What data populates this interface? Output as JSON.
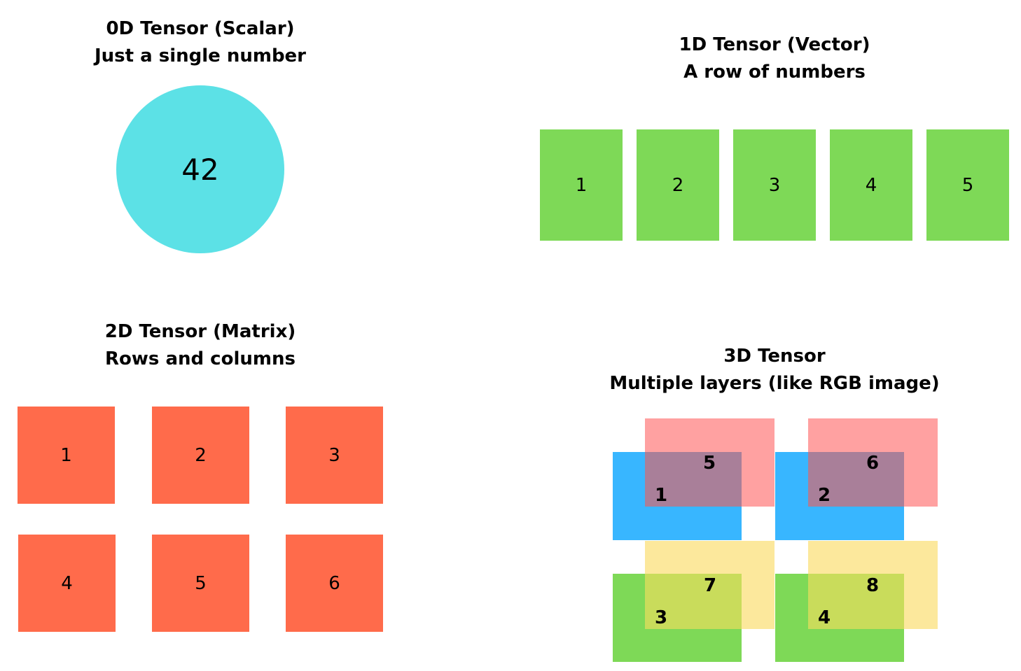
{
  "scalar": {
    "title": "0D Tensor (Scalar)",
    "subtitle": "Just a single number",
    "value": "42"
  },
  "vector": {
    "title": "1D Tensor (Vector)",
    "subtitle": "A row of numbers",
    "values": [
      "1",
      "2",
      "3",
      "4",
      "5"
    ]
  },
  "matrix": {
    "title": "2D Tensor (Matrix)",
    "subtitle": "Rows and columns",
    "values": [
      "1",
      "2",
      "3",
      "4",
      "5",
      "6"
    ]
  },
  "tensor3d": {
    "title": "3D Tensor",
    "subtitle": "Multiple layers (like RGB image)",
    "front": [
      "1",
      "2",
      "3",
      "4"
    ],
    "back": [
      "5",
      "6",
      "7",
      "8"
    ]
  },
  "colors": {
    "scalar": "#5ce1e6",
    "vector": "#7ed957",
    "matrix": "#ff6b4b",
    "layer_pink": "#ff9191",
    "layer_blue": "#38b6ff",
    "layer_yellow": "#fce89c",
    "layer_green": "#7ed957"
  }
}
